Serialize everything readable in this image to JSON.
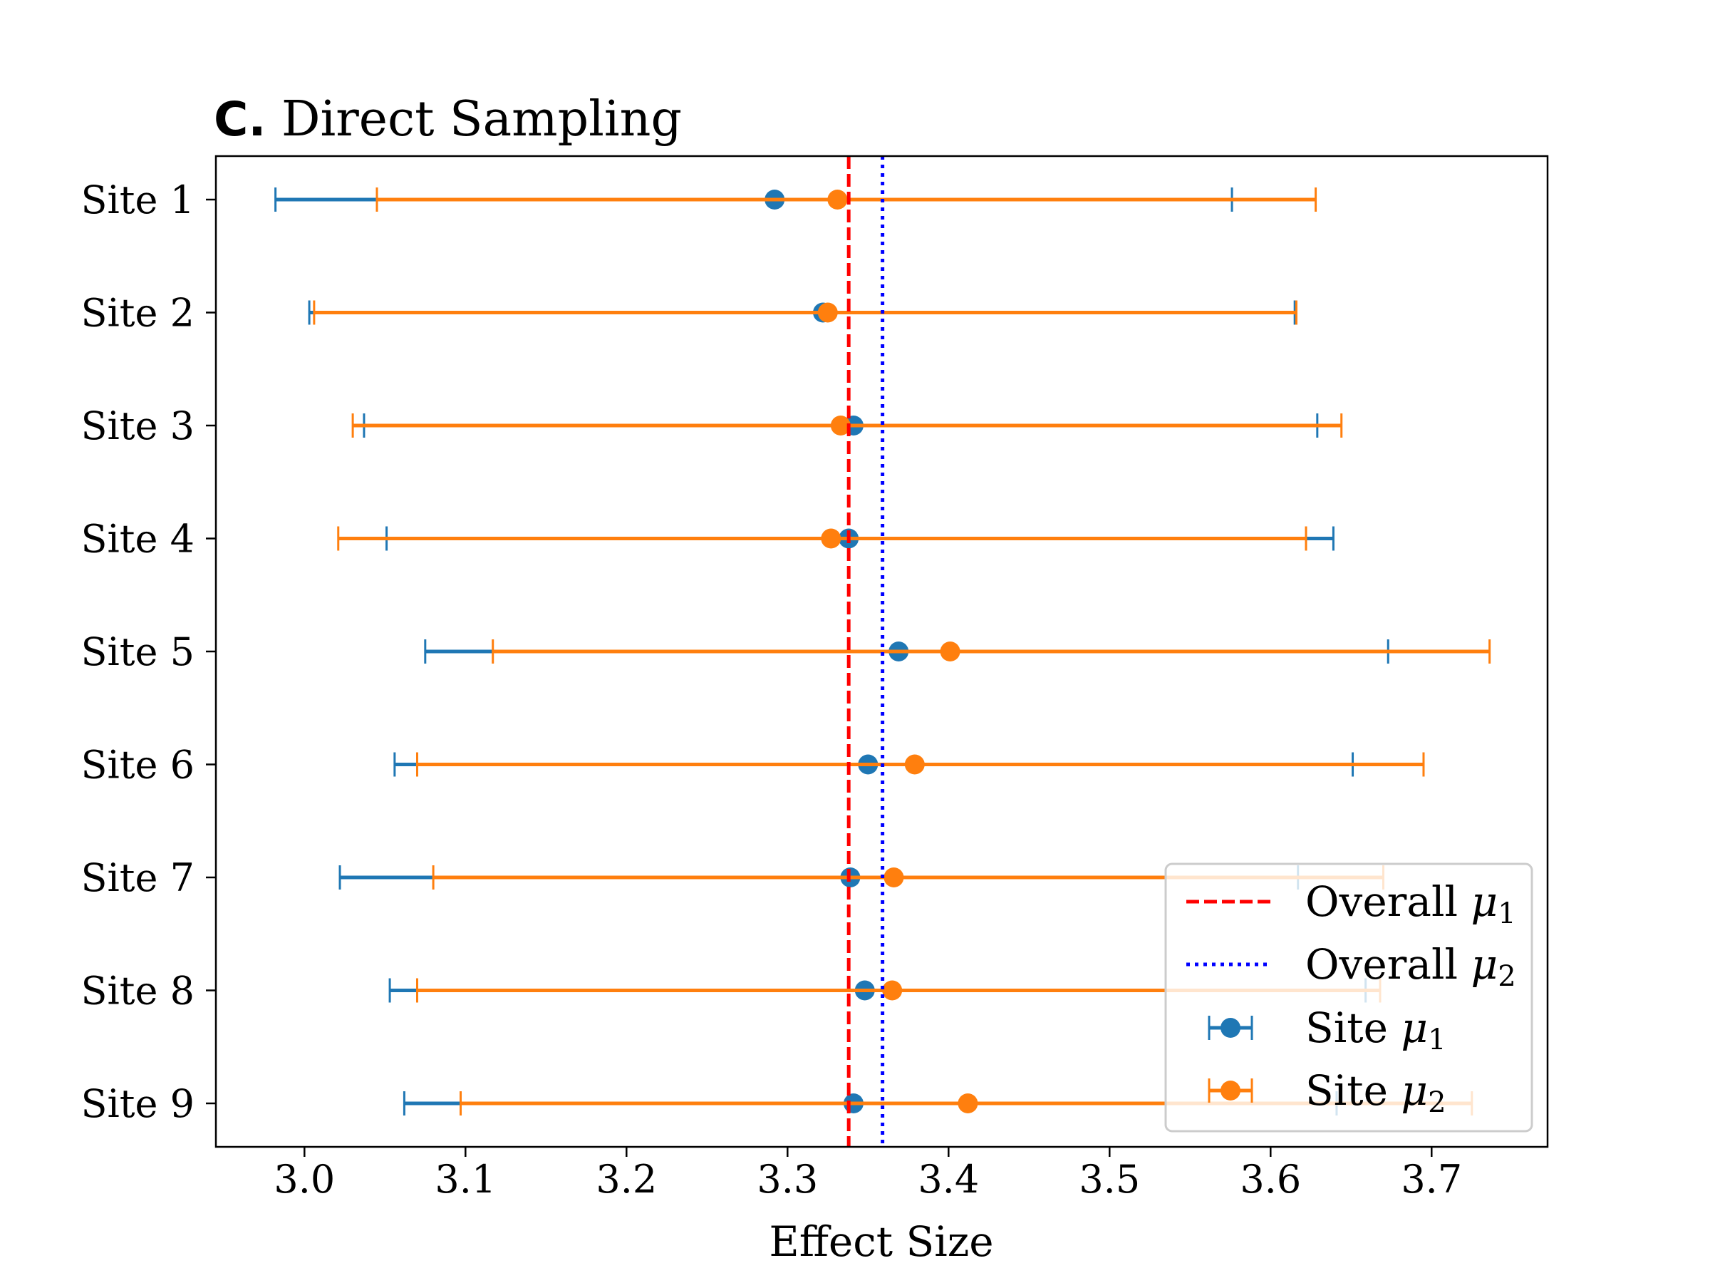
{
  "chart_data": {
    "type": "errorbar",
    "panel_label": "C.",
    "title": "Direct Sampling",
    "xlabel": "Effect Size",
    "ylabel": "",
    "xlim": [
      2.945,
      3.772
    ],
    "x_ticks": [
      3.0,
      3.1,
      3.2,
      3.3,
      3.4,
      3.5,
      3.6,
      3.7
    ],
    "x_tick_labels": [
      "3.0",
      "3.1",
      "3.2",
      "3.3",
      "3.4",
      "3.5",
      "3.6",
      "3.7"
    ],
    "categories": [
      "Site 1",
      "Site 2",
      "Site 3",
      "Site 4",
      "Site 5",
      "Site 6",
      "Site 7",
      "Site 8",
      "Site 9"
    ],
    "series": [
      {
        "name": "Site μ1",
        "color": "#1f77b4",
        "values": [
          3.292,
          3.322,
          3.341,
          3.338,
          3.369,
          3.35,
          3.339,
          3.348,
          3.341
        ],
        "lower": [
          2.982,
          3.003,
          3.037,
          3.051,
          3.075,
          3.056,
          3.022,
          3.053,
          3.062
        ],
        "upper": [
          3.576,
          3.615,
          3.629,
          3.639,
          3.673,
          3.651,
          3.617,
          3.659,
          3.641
        ]
      },
      {
        "name": "Site μ2",
        "color": "#ff7f0e",
        "values": [
          3.331,
          3.325,
          3.333,
          3.327,
          3.401,
          3.379,
          3.366,
          3.365,
          3.412
        ],
        "lower": [
          3.045,
          3.006,
          3.03,
          3.021,
          3.117,
          3.07,
          3.08,
          3.07,
          3.097
        ],
        "upper": [
          3.628,
          3.616,
          3.644,
          3.622,
          3.736,
          3.695,
          3.67,
          3.668,
          3.725
        ]
      }
    ],
    "reference_lines": [
      {
        "name": "Overall μ1",
        "value": 3.338,
        "color": "#ff0000",
        "style": "dashed"
      },
      {
        "name": "Overall μ2",
        "value": 3.359,
        "color": "#0000ff",
        "style": "dotted"
      }
    ],
    "legend": {
      "position": "lower-right",
      "entries": [
        {
          "prefix": "Overall ",
          "symbol": "μ",
          "sub": "1"
        },
        {
          "prefix": "Overall ",
          "symbol": "μ",
          "sub": "2"
        },
        {
          "prefix": "Site ",
          "symbol": "μ",
          "sub": "1"
        },
        {
          "prefix": "Site ",
          "symbol": "μ",
          "sub": "2"
        }
      ]
    }
  }
}
